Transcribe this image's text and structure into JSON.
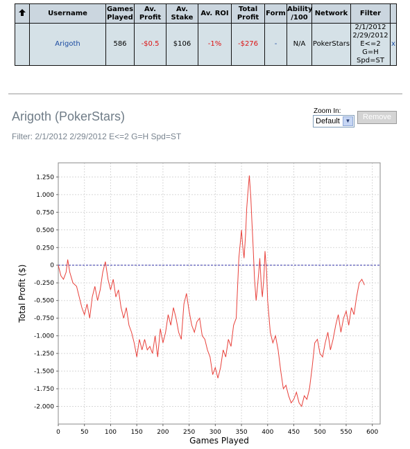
{
  "stats_table": {
    "headers": [
      "",
      "Username",
      "Games Played",
      "Av. Profit",
      "Av. Stake",
      "Av. ROI",
      "Total Profit",
      "Form",
      "Ability /100",
      "Network",
      "Filter"
    ],
    "header_lines": [
      [
        ""
      ],
      [
        "Username"
      ],
      [
        "Games",
        "Played"
      ],
      [
        "Av.",
        "Profit"
      ],
      [
        "Av.",
        "Stake"
      ],
      [
        "Av. ROI"
      ],
      [
        "Total",
        "Profit"
      ],
      [
        "Form"
      ],
      [
        "Ability",
        "/100"
      ],
      [
        "Network"
      ],
      [
        "Filter"
      ]
    ],
    "row": {
      "username": "Arigoth",
      "games_played": "586",
      "av_profit": "-$0.5",
      "av_stake": "$106",
      "av_roi": "-1%",
      "total_profit": "-$276",
      "form": "-",
      "ability": "N/A",
      "network": "PokerStars",
      "filter_lines": [
        "2/1/2012",
        "2/29/2012",
        "E<=2 G=H",
        "Spd=ST"
      ],
      "remove_x": "x"
    },
    "sort_icon": "up-arrow-icon"
  },
  "player_title": "Arigoth (PokerStars)",
  "filter_line": "Filter: 2/1/2012 2/29/2012 E<=2 G=H Spd=ST",
  "zoom": {
    "label": "Zoom In:",
    "selected": "Default"
  },
  "remove_button": "Remove",
  "colors": {
    "line": "#e8403a",
    "zero_line": "#3333aa",
    "grid": "#d7d7d7",
    "header_bg": "#cbd6df",
    "row_bg": "#d5e1e7"
  },
  "chart_data": {
    "type": "line",
    "xlabel": "Games Played",
    "ylabel": "Total Profit ($)",
    "xlim": [
      0,
      615
    ],
    "ylim": [
      -2.25,
      1.45
    ],
    "x_ticks": [
      0,
      50,
      100,
      150,
      200,
      250,
      300,
      350,
      400,
      450,
      500,
      550,
      600
    ],
    "y_ticks": [
      1.25,
      1.0,
      0.75,
      0.5,
      0.25,
      0,
      -0.25,
      -0.5,
      -0.75,
      -1.0,
      -1.25,
      -1.5,
      -1.75,
      -2.0
    ],
    "y_tick_labels": [
      "1.250",
      "1.000",
      "0.750",
      "0.500",
      "0.250",
      "0",
      "-0.250",
      "-0.500",
      "-0.750",
      "-1.000",
      "-1.250",
      "-1.500",
      "-1.750",
      "-2.000"
    ],
    "zero_line": true,
    "grid": true,
    "series": [
      {
        "x": [
          0,
          5,
          10,
          15,
          18,
          22,
          28,
          35,
          40,
          45,
          50,
          55,
          60,
          65,
          70,
          75,
          80,
          85,
          90,
          95,
          100,
          105,
          110,
          115,
          120,
          125,
          130,
          135,
          140,
          145,
          150,
          155,
          160,
          165,
          170,
          175,
          180,
          185,
          190,
          195,
          200,
          205,
          210,
          215,
          220,
          225,
          230,
          235,
          240,
          245,
          250,
          255,
          260,
          265,
          270,
          275,
          280,
          285,
          290,
          295,
          300,
          305,
          310,
          315,
          320,
          325,
          330,
          335,
          340,
          345,
          350,
          352,
          355,
          358,
          360,
          362,
          365,
          368,
          370,
          372,
          375,
          378,
          380,
          383,
          385,
          388,
          390,
          393,
          395,
          398,
          400,
          405,
          410,
          415,
          420,
          425,
          430,
          435,
          440,
          445,
          450,
          455,
          460,
          465,
          470,
          475,
          480,
          485,
          490,
          495,
          500,
          505,
          510,
          515,
          520,
          525,
          530,
          535,
          540,
          545,
          550,
          555,
          560,
          565,
          570,
          575,
          580,
          585
        ],
        "y": [
          0,
          -0.15,
          -0.2,
          -0.1,
          0.08,
          -0.1,
          -0.25,
          -0.3,
          -0.45,
          -0.6,
          -0.7,
          -0.55,
          -0.75,
          -0.45,
          -0.3,
          -0.5,
          -0.35,
          -0.1,
          0.05,
          -0.2,
          -0.35,
          -0.2,
          -0.45,
          -0.35,
          -0.6,
          -0.75,
          -0.6,
          -0.85,
          -0.95,
          -1.1,
          -1.3,
          -1.05,
          -1.2,
          -1.05,
          -1.2,
          -1.15,
          -1.25,
          -1.0,
          -1.3,
          -0.9,
          -1.1,
          -0.95,
          -0.7,
          -0.85,
          -0.6,
          -0.75,
          -0.95,
          -1.05,
          -0.55,
          -0.4,
          -0.65,
          -0.85,
          -0.95,
          -0.8,
          -0.75,
          -1.0,
          -1.05,
          -1.2,
          -1.3,
          -1.55,
          -1.45,
          -1.6,
          -1.45,
          -1.2,
          -1.3,
          -1.05,
          -1.15,
          -0.85,
          -0.75,
          0.1,
          0.5,
          0.3,
          0.1,
          0.45,
          0.8,
          1.0,
          1.27,
          0.95,
          0.6,
          0.3,
          -0.2,
          -0.5,
          -0.35,
          -0.1,
          0.1,
          -0.3,
          -0.45,
          -0.15,
          0.2,
          -0.1,
          -0.5,
          -0.95,
          -1.1,
          -1.0,
          -1.2,
          -1.5,
          -1.75,
          -1.7,
          -1.85,
          -1.95,
          -1.9,
          -1.8,
          -1.95,
          -2.0,
          -1.85,
          -1.9,
          -1.75,
          -1.45,
          -1.1,
          -1.05,
          -1.25,
          -1.3,
          -1.1,
          -0.95,
          -1.2,
          -1.05,
          -0.85,
          -0.7,
          -0.95,
          -0.75,
          -0.65,
          -0.85,
          -0.6,
          -0.7,
          -0.45,
          -0.25,
          -0.2,
          -0.28
        ]
      }
    ]
  }
}
